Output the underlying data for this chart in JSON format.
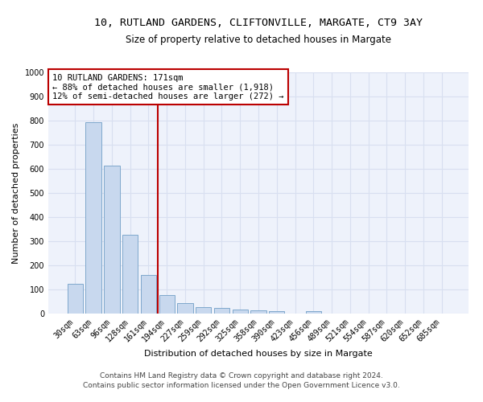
{
  "title1": "10, RUTLAND GARDENS, CLIFTONVILLE, MARGATE, CT9 3AY",
  "title2": "Size of property relative to detached houses in Margate",
  "xlabel": "Distribution of detached houses by size in Margate",
  "ylabel": "Number of detached properties",
  "categories": [
    "30sqm",
    "63sqm",
    "96sqm",
    "128sqm",
    "161sqm",
    "194sqm",
    "227sqm",
    "259sqm",
    "292sqm",
    "325sqm",
    "358sqm",
    "390sqm",
    "423sqm",
    "456sqm",
    "489sqm",
    "521sqm",
    "554sqm",
    "587sqm",
    "620sqm",
    "652sqm",
    "685sqm"
  ],
  "values": [
    125,
    795,
    615,
    328,
    160,
    78,
    42,
    28,
    25,
    18,
    15,
    10,
    0,
    10,
    0,
    0,
    0,
    0,
    0,
    0,
    0
  ],
  "bar_color": "#c8d8ee",
  "bar_edge_color": "#7fa8cc",
  "vline_x_index": 4,
  "vline_color": "#bb0000",
  "annotation_text": "10 RUTLAND GARDENS: 171sqm\n← 88% of detached houses are smaller (1,918)\n12% of semi-detached houses are larger (272) →",
  "annotation_box_facecolor": "#ffffff",
  "annotation_box_edgecolor": "#bb0000",
  "ylim": [
    0,
    1000
  ],
  "yticks": [
    0,
    100,
    200,
    300,
    400,
    500,
    600,
    700,
    800,
    900,
    1000
  ],
  "footer1": "Contains HM Land Registry data © Crown copyright and database right 2024.",
  "footer2": "Contains public sector information licensed under the Open Government Licence v3.0.",
  "bg_color": "#eef2fb",
  "grid_color": "#d8dff0",
  "title1_fontsize": 9.5,
  "title2_fontsize": 8.5,
  "xlabel_fontsize": 8,
  "ylabel_fontsize": 8,
  "tick_fontsize": 7,
  "annotation_fontsize": 7.5,
  "footer_fontsize": 6.5
}
